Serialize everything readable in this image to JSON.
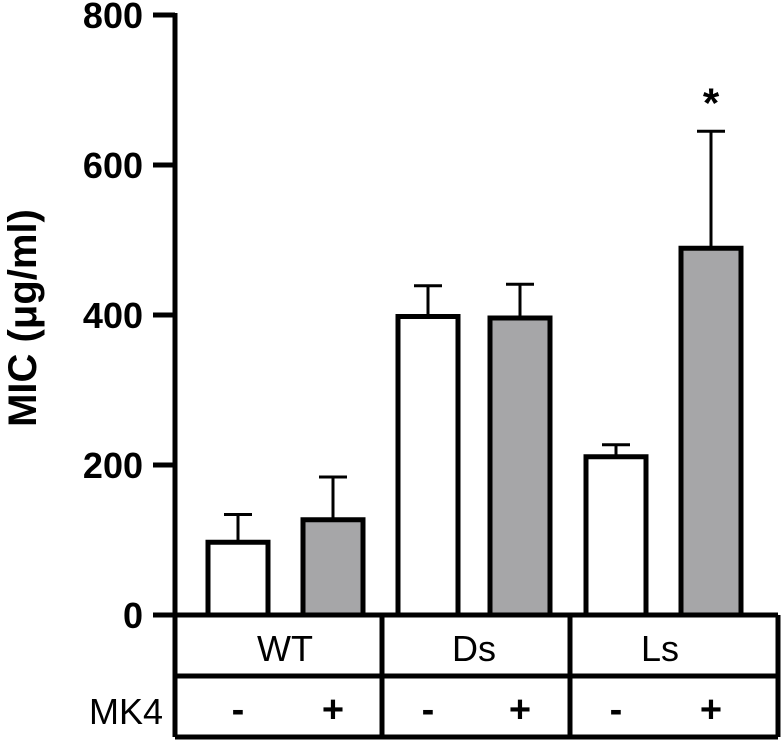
{
  "chart_data": {
    "type": "bar",
    "title": "",
    "xlabel": "",
    "ylabel": "MIC (μg/ml)",
    "ylim": [
      0,
      800
    ],
    "yticks": [
      0,
      200,
      400,
      600,
      800
    ],
    "grid": false,
    "legend": "none",
    "groups": [
      "WT",
      "Ds",
      "Ls"
    ],
    "condition_row_label": "MK4",
    "conditions": [
      "-",
      "+"
    ],
    "bars": [
      {
        "group": "WT",
        "condition": "-",
        "value": 97,
        "error": 37,
        "fill": "#ffffff",
        "annotation": ""
      },
      {
        "group": "WT",
        "condition": "+",
        "value": 127,
        "error": 57,
        "fill": "#a6a6a8",
        "annotation": ""
      },
      {
        "group": "Ds",
        "condition": "-",
        "value": 398,
        "error": 41,
        "fill": "#ffffff",
        "annotation": ""
      },
      {
        "group": "Ds",
        "condition": "+",
        "value": 396,
        "error": 45,
        "fill": "#a6a6a8",
        "annotation": ""
      },
      {
        "group": "Ls",
        "condition": "-",
        "value": 211,
        "error": 16,
        "fill": "#ffffff",
        "annotation": ""
      },
      {
        "group": "Ls",
        "condition": "+",
        "value": 489,
        "error": 156,
        "fill": "#a6a6a8",
        "annotation": "*"
      }
    ]
  }
}
